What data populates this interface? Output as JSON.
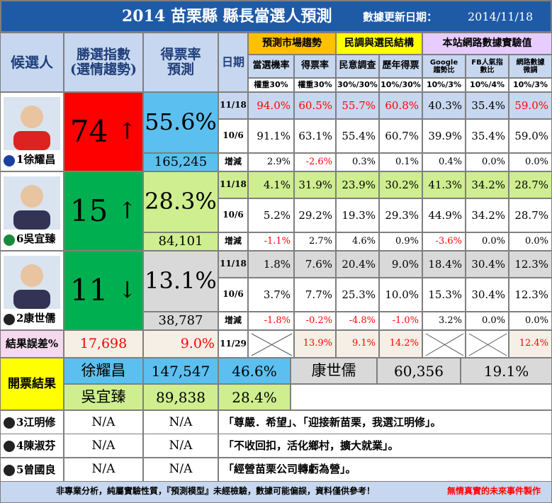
{
  "title": {
    "main": "2014 苗栗縣 縣長當選人預測",
    "update_label": "數據更新日期：",
    "update_date": "2014/11/18"
  },
  "colors": {
    "title_bg": "#1f5aa6",
    "header_bg": "#c7d7ef",
    "gold": "#ffc000",
    "yellow": "#ffff00",
    "lilac": "#e6ccff",
    "red": "#ff0000",
    "green": "#00b050",
    "sky": "#5bc0f0",
    "lime": "#cfee8f",
    "gray": "#d9d9d9",
    "beige": "#f5efe5",
    "pink": "#f4d9ef",
    "footer_bg": "#c7d7ef"
  },
  "headers": {
    "candidate": "候選人",
    "win_index": "勝選指數\n(選情趨勢)",
    "vote_rate": "得票率\n預測",
    "date": "日期",
    "groups": {
      "market": "預測市場趨勢",
      "poll": "民調與選民結構",
      "web": "本站網路數據實驗值"
    },
    "subs": [
      "當選機率",
      "得票率",
      "民意調查",
      "歷年得票",
      "Google\n趨勢比",
      "FB人氣指\n數比",
      "網路數據\n微調"
    ],
    "weights": [
      "權重30%",
      "權重30%",
      "30%/30%",
      "10%/30%",
      "10%/3%",
      "10%/4%",
      "10%/3%"
    ]
  },
  "candidates": [
    {
      "name": "1徐耀昌",
      "party_icon": "kmt-sun-icon",
      "index": "74",
      "arrow": "↑",
      "rate": "55.6%",
      "votes": "165,245",
      "rows": [
        {
          "date": "11/18",
          "values": [
            "94.0%",
            "60.5%",
            "55.7%",
            "60.8%",
            "40.3%",
            "35.4%",
            "59.0%"
          ],
          "red": [
            true,
            true,
            true,
            true,
            false,
            false,
            true
          ]
        },
        {
          "date": "10/6",
          "values": [
            "91.1%",
            "63.1%",
            "55.4%",
            "60.7%",
            "39.9%",
            "35.4%",
            "59.0%"
          ],
          "red": [
            false,
            false,
            false,
            false,
            false,
            false,
            false
          ]
        },
        {
          "date": "增減",
          "values": [
            "2.9%",
            "-2.6%",
            "0.3%",
            "0.1%",
            "0.4%",
            "0.0%",
            "0.0%"
          ],
          "red": [
            false,
            true,
            false,
            false,
            false,
            false,
            false
          ]
        }
      ]
    },
    {
      "name": "6吳宜臻",
      "party_icon": "dpp-flag-icon",
      "index": "15",
      "arrow": "↑",
      "rate": "28.3%",
      "votes": "84,101",
      "rows": [
        {
          "date": "11/18",
          "values": [
            "4.1%",
            "31.9%",
            "23.9%",
            "30.2%",
            "41.3%",
            "34.2%",
            "28.7%"
          ],
          "red": [
            false,
            false,
            false,
            false,
            false,
            false,
            false
          ]
        },
        {
          "date": "10/6",
          "values": [
            "5.2%",
            "29.2%",
            "19.3%",
            "29.3%",
            "44.9%",
            "34.2%",
            "28.7%"
          ],
          "red": [
            false,
            false,
            false,
            false,
            false,
            false,
            false
          ]
        },
        {
          "date": "增減",
          "values": [
            "-1.1%",
            "2.7%",
            "4.6%",
            "0.9%",
            "-3.6%",
            "0.0%",
            "0.0%"
          ],
          "red": [
            true,
            false,
            false,
            false,
            true,
            false,
            false
          ]
        }
      ]
    },
    {
      "name": "2康世儒",
      "party_icon": "independent-icon",
      "index": "11",
      "arrow": "↓",
      "rate": "13.1%",
      "votes": "38,787",
      "rows": [
        {
          "date": "11/18",
          "values": [
            "1.8%",
            "7.6%",
            "20.4%",
            "9.0%",
            "18.4%",
            "30.4%",
            "12.3%"
          ],
          "red": [
            false,
            false,
            false,
            false,
            false,
            false,
            false
          ]
        },
        {
          "date": "10/6",
          "values": [
            "3.7%",
            "7.7%",
            "25.3%",
            "10.0%",
            "15.3%",
            "30.4%",
            "12.3%"
          ],
          "red": [
            false,
            false,
            false,
            false,
            false,
            false,
            false
          ]
        },
        {
          "date": "增減",
          "values": [
            "-1.8%",
            "-0.2%",
            "-4.8%",
            "-1.0%",
            "3.2%",
            "0.0%",
            "0.0%"
          ],
          "red": [
            true,
            true,
            true,
            true,
            false,
            false,
            false
          ]
        }
      ]
    }
  ],
  "error_row": {
    "label": "結果誤差%",
    "votes": "17,698",
    "rate": "9.0%",
    "date": "11/29",
    "values": [
      "",
      "13.9%",
      "9.1%",
      "14.2%",
      "",
      "",
      "12.4%"
    ]
  },
  "results": {
    "label": "開票結果",
    "first": {
      "name": "徐耀昌",
      "votes": "147,547",
      "pct": "46.6%"
    },
    "second": {
      "name": "吳宜臻",
      "votes": "89,838",
      "pct": "28.4%"
    },
    "third": {
      "name": "康世儒",
      "votes": "60,356",
      "pct": "19.1%"
    }
  },
  "others": [
    {
      "name": "3江明修",
      "a": "N/A",
      "b": "N/A",
      "slogan": "「尊嚴．希望」、「迎接新苗栗，我選江明修」。"
    },
    {
      "name": "4陳淑芬",
      "a": "N/A",
      "b": "N/A",
      "slogan": "「不收回扣，活化鄉村，擴大就業」。"
    },
    {
      "name": "5曾國良",
      "a": "N/A",
      "b": "N/A",
      "slogan": "「經營苗栗公司轉虧為營」。"
    }
  ],
  "footer": {
    "disclaimer": "非專業分析，純屬實驗性質，『預測模型』未經檢驗，數據可能偏誤，資料僅供參考！",
    "credit": "無情真實的未來事件製作"
  }
}
